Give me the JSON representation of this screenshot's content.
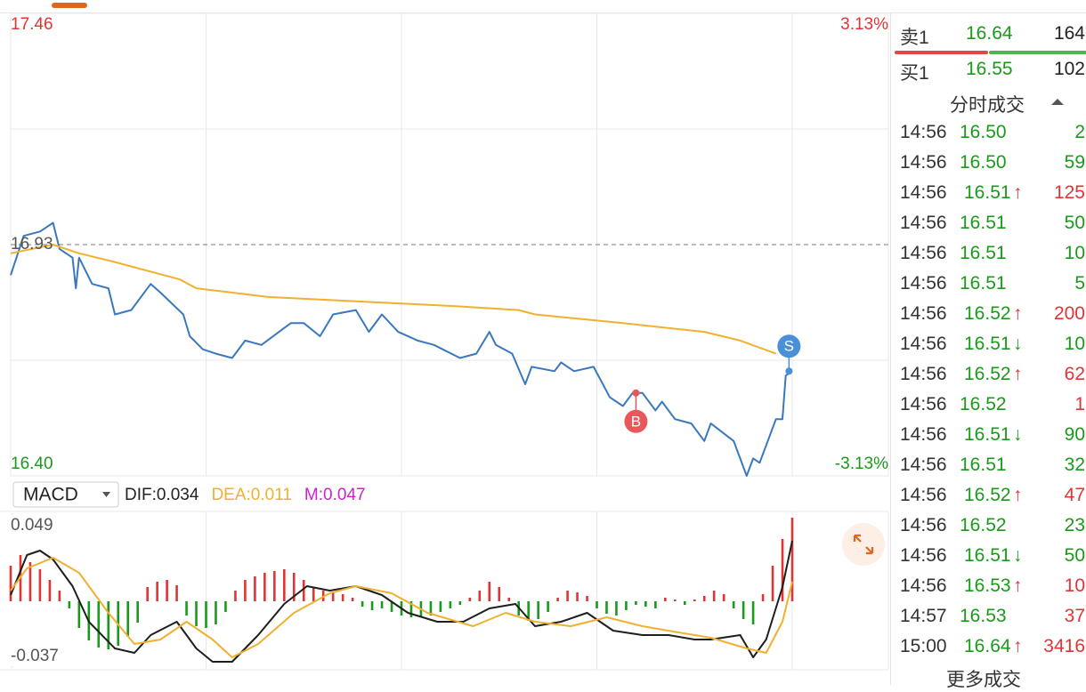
{
  "chart_data": [
    {
      "type": "line",
      "xlim": [
        0,
        240
      ],
      "xgrid": [
        60,
        120,
        180,
        240
      ],
      "ylim": [
        16.4,
        17.46
      ],
      "yticks": [
        17.46,
        {
          "value": 16.4,
          "label": "16.40"
        }
      ],
      "ygrid": [
        17.195,
        16.665
      ],
      "baseline": 16.93,
      "y2lim": [
        -3.13,
        3.13
      ],
      "y2ticks": [
        {
          "value": 3.13,
          "label": "3.13%"
        },
        {
          "value": -3.13,
          "label": "-3.13%"
        }
      ],
      "series": [
        {
          "color": "#3a78bd",
          "x": [
            0,
            4,
            9,
            13,
            15,
            19,
            20,
            21,
            25,
            30,
            32,
            37,
            43,
            46,
            53,
            55,
            59,
            63,
            68,
            72,
            77,
            86,
            90,
            95,
            99,
            106,
            110,
            114,
            119,
            125,
            130,
            138,
            143,
            147,
            149,
            154,
            158,
            160,
            167,
            169,
            173,
            179,
            184,
            188,
            191,
            194,
            198,
            200,
            204,
            209,
            213,
            215,
            222,
            226,
            228,
            230,
            235,
            237,
            238,
            240
          ],
          "values": [
            16.86,
            16.95,
            16.96,
            16.98,
            16.92,
            16.9,
            16.83,
            16.9,
            16.84,
            16.83,
            16.77,
            16.78,
            16.84,
            16.82,
            16.77,
            16.72,
            16.69,
            16.68,
            16.67,
            16.71,
            16.7,
            16.75,
            16.75,
            16.72,
            16.77,
            16.78,
            16.73,
            16.77,
            16.73,
            16.71,
            16.7,
            16.67,
            16.68,
            16.73,
            16.7,
            16.68,
            16.61,
            16.65,
            16.64,
            16.66,
            16.64,
            16.65,
            16.58,
            16.56,
            16.59,
            16.59,
            16.55,
            16.57,
            16.53,
            16.52,
            16.48,
            16.52,
            16.48,
            16.4,
            16.44,
            16.43,
            16.53,
            16.53,
            16.63,
            16.64
          ]
        },
        {
          "color": "#f0b030",
          "x": [
            0,
            13,
            21,
            32,
            52,
            57,
            79,
            106,
            134,
            156,
            161,
            188,
            213,
            224,
            235
          ],
          "values": [
            16.91,
            16.93,
            16.91,
            16.89,
            16.85,
            16.83,
            16.81,
            16.8,
            16.79,
            16.78,
            16.77,
            16.75,
            16.73,
            16.71,
            16.68
          ]
        }
      ],
      "annotations": [
        {
          "label": "B",
          "x": 192,
          "value": 16.59,
          "color": "#e8585a"
        },
        {
          "label": "S",
          "x": 239,
          "value": 16.64,
          "color": "#4a90d9"
        }
      ]
    },
    {
      "type": "macd",
      "title": "MACD",
      "xlim": [
        0,
        240
      ],
      "xgrid": [
        60,
        120,
        180,
        240
      ],
      "ylim": [
        -0.037,
        0.049
      ],
      "yticks": [
        0.049,
        -0.037
      ],
      "series": [
        {
          "name": "DIF:0.034",
          "color": "#1e1e1e",
          "legend_color": "#222222",
          "x": [
            0,
            5,
            9,
            13,
            19,
            24,
            32,
            38,
            43,
            51,
            57,
            62,
            68,
            76,
            84,
            91,
            98,
            106,
            114,
            122,
            131,
            139,
            147,
            155,
            161,
            169,
            177,
            185,
            194,
            202,
            210,
            215,
            224,
            228,
            232,
            237,
            240
          ],
          "values": [
            0.0035,
            0.026,
            0.0285,
            0.0235,
            0.0085,
            -0.0115,
            -0.0265,
            -0.029,
            -0.019,
            -0.0115,
            -0.0265,
            -0.034,
            -0.034,
            -0.019,
            -0.0015,
            0.0085,
            0.006,
            0.0085,
            0.0035,
            -0.0065,
            -0.0115,
            -0.0115,
            -0.004,
            -0.0015,
            -0.014,
            -0.0115,
            -0.0065,
            -0.0165,
            -0.019,
            -0.019,
            -0.0215,
            -0.0215,
            -0.019,
            -0.0315,
            -0.0215,
            0.008,
            0.034
          ]
        },
        {
          "name": "DEA:0.011",
          "color": "#f0b030",
          "legend_color": "#f0b030",
          "x": [
            0,
            5,
            13,
            21,
            30,
            38,
            46,
            54,
            62,
            68,
            76,
            87,
            98,
            106,
            117,
            128,
            142,
            152,
            161,
            172,
            183,
            194,
            205,
            215,
            226,
            232,
            237,
            240
          ],
          "values": [
            0.006,
            0.0185,
            0.0245,
            0.016,
            -0.0065,
            -0.024,
            -0.0215,
            -0.0115,
            -0.0215,
            -0.0315,
            -0.024,
            -0.0065,
            0.0045,
            0.0085,
            0.0045,
            -0.0065,
            -0.014,
            -0.0065,
            -0.0115,
            -0.014,
            -0.009,
            -0.014,
            -0.0175,
            -0.0205,
            -0.0265,
            -0.029,
            -0.0115,
            0.011
          ]
        },
        {
          "name": "M:0.047",
          "type": "bar",
          "legend_color": "#d020d0",
          "color_up": "#e03535",
          "color_down": "#1a9a1a",
          "x": [
            0,
            3,
            6,
            9,
            12,
            15,
            18,
            21,
            24,
            27,
            30,
            33,
            36,
            39,
            42,
            45,
            48,
            51,
            54,
            57,
            60,
            63,
            66,
            69,
            72,
            75,
            78,
            81,
            84,
            87,
            90,
            93,
            96,
            99,
            102,
            105,
            108,
            111,
            114,
            117,
            120,
            123,
            126,
            129,
            132,
            135,
            138,
            141,
            144,
            147,
            150,
            153,
            156,
            159,
            162,
            165,
            168,
            171,
            174,
            177,
            180,
            183,
            186,
            189,
            192,
            195,
            198,
            201,
            204,
            207,
            210,
            213,
            216,
            219,
            222,
            225,
            228,
            231,
            234,
            237,
            240
          ],
          "values": [
            0.02,
            0.026,
            0.022,
            0.018,
            0.012,
            0.006,
            -0.004,
            -0.015,
            -0.022,
            -0.026,
            -0.027,
            -0.025,
            -0.02,
            -0.012,
            0.008,
            0.011,
            0.012,
            0.009,
            -0.008,
            -0.014,
            -0.015,
            -0.013,
            -0.006,
            0.006,
            0.012,
            0.014,
            0.016,
            0.017,
            0.018,
            0.016,
            0.012,
            0.008,
            0.006,
            0.005,
            0.004,
            0.002,
            -0.003,
            -0.005,
            -0.004,
            -0.006,
            -0.008,
            -0.009,
            -0.009,
            -0.008,
            -0.006,
            -0.004,
            -0.002,
            0.002,
            0.006,
            0.011,
            0.008,
            0.002,
            -0.008,
            -0.011,
            -0.01,
            -0.006,
            0.002,
            0.006,
            0.005,
            0.003,
            -0.004,
            -0.007,
            -0.008,
            -0.005,
            -0.002,
            -0.003,
            -0.004,
            0.002,
            0.001,
            -0.002,
            0.001,
            0.003,
            0.006,
            0.004,
            -0.004,
            -0.01,
            -0.013,
            0.004,
            0.02,
            0.035,
            0.047
          ]
        }
      ]
    }
  ],
  "order_book": {
    "asks": [
      {
        "label": "卖1",
        "price": "16.64",
        "volume": 164
      }
    ],
    "bids": [
      {
        "label": "买1",
        "price": "16.55",
        "volume": 102
      }
    ]
  },
  "trades": {
    "title": "分时成交",
    "more": "更多成交",
    "rows": [
      {
        "time": "14:56",
        "price": "16.50",
        "volume": 2,
        "color": "#1a9a1a"
      },
      {
        "time": "14:56",
        "price": "16.50",
        "volume": 59,
        "color": "#1a9a1a"
      },
      {
        "time": "14:56",
        "price": "16.51",
        "arrow": "↑",
        "volume": 125,
        "color": "#e03535"
      },
      {
        "time": "14:56",
        "price": "16.51",
        "volume": 50,
        "color": "#1a9a1a"
      },
      {
        "time": "14:56",
        "price": "16.51",
        "volume": 10,
        "color": "#1a9a1a"
      },
      {
        "time": "14:56",
        "price": "16.51",
        "volume": 5,
        "color": "#1a9a1a"
      },
      {
        "time": "14:56",
        "price": "16.52",
        "arrow": "↑",
        "volume": 200,
        "color": "#e03535"
      },
      {
        "time": "14:56",
        "price": "16.51",
        "arrow": "↓",
        "volume": 10,
        "color": "#1a9a1a"
      },
      {
        "time": "14:56",
        "price": "16.52",
        "arrow": "↑",
        "volume": 62,
        "color": "#e03535"
      },
      {
        "time": "14:56",
        "price": "16.52",
        "volume": 1,
        "color": "#e03535"
      },
      {
        "time": "14:56",
        "price": "16.51",
        "arrow": "↓",
        "volume": 90,
        "color": "#1a9a1a"
      },
      {
        "time": "14:56",
        "price": "16.51",
        "volume": 32,
        "color": "#1a9a1a"
      },
      {
        "time": "14:56",
        "price": "16.52",
        "arrow": "↑",
        "volume": 47,
        "color": "#e03535"
      },
      {
        "time": "14:56",
        "price": "16.52",
        "volume": 23,
        "color": "#1a9a1a"
      },
      {
        "time": "14:56",
        "price": "16.51",
        "arrow": "↓",
        "volume": 50,
        "color": "#1a9a1a"
      },
      {
        "time": "14:56",
        "price": "16.53",
        "arrow": "↑",
        "volume": 10,
        "color": "#e03535"
      },
      {
        "time": "14:57",
        "price": "16.53",
        "volume": 37,
        "color": "#e03535"
      },
      {
        "time": "15:00",
        "price": "16.64",
        "arrow": "↑",
        "volume": 3416,
        "color": "#e03535"
      }
    ]
  }
}
